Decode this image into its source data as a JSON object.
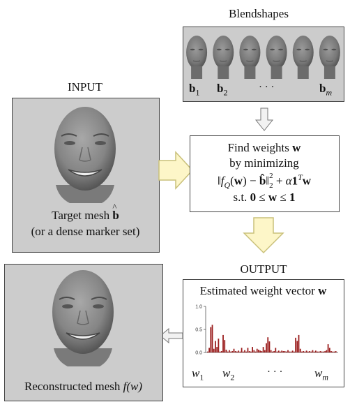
{
  "blendshapes": {
    "title": "Blendshapes",
    "labels": [
      "b",
      "b",
      "· · ·",
      "b"
    ],
    "subs": [
      "1",
      "2",
      "",
      "m"
    ]
  },
  "input": {
    "title": "INPUT",
    "caption_line1": "Target mesh",
    "caption_symbol": "b",
    "caption_line2": "(or a dense marker set)"
  },
  "process": {
    "line1": "Find weights",
    "line1_symbol": "w",
    "line2": "by minimizing",
    "constraint_prefix": "s.t."
  },
  "output": {
    "title": "OUTPUT",
    "chart_title": "Estimated weight vector",
    "chart_title_symbol": "w",
    "x_labels": [
      "w",
      "w",
      "· · ·",
      "w"
    ],
    "x_subs": [
      "1",
      "2",
      "",
      "m"
    ]
  },
  "reconstructed": {
    "caption": "Reconstructed mesh",
    "caption_symbol": "f(w)"
  },
  "colors": {
    "panel_bg": "#cccccc",
    "arrow_fill": "#fdf6c8",
    "arrow_stroke": "#c9c07a",
    "bar_color": "#9a1c1c",
    "small_arrow": "#f2f2f2"
  },
  "chart_data": {
    "type": "bar",
    "ylim": [
      0,
      1.0
    ],
    "y_ticks": [
      "0.0",
      "0.5",
      "1.0"
    ],
    "values": [
      0.02,
      0.1,
      0.55,
      0.6,
      0.08,
      0.25,
      0.12,
      0.3,
      0.02,
      0.03,
      0.38,
      0.27,
      0.06,
      0.02,
      0.05,
      0.02,
      0.03,
      0.08,
      0.03,
      0.02,
      0.04,
      0.02,
      0.1,
      0.02,
      0.05,
      0.02,
      0.1,
      0.03,
      0.02,
      0.12,
      0.05,
      0.02,
      0.08,
      0.06,
      0.04,
      0.03,
      0.12,
      0.05,
      0.2,
      0.33,
      0.24,
      0.05,
      0.02,
      0.03,
      0.1,
      0.02,
      0.04,
      0.02,
      0.04,
      0.03,
      0.03,
      0.02,
      0.05,
      0.02,
      0.02,
      0.04,
      0.02,
      0.32,
      0.25,
      0.38,
      0.08,
      0.02,
      0.03,
      0.02,
      0.04,
      0.02,
      0.03,
      0.02,
      0.05,
      0.02,
      0.04,
      0.02,
      0.02,
      0.03,
      0.02,
      0.02,
      0.03,
      0.05,
      0.18,
      0.1,
      0.03,
      0.02,
      0.02,
      0.03
    ]
  }
}
